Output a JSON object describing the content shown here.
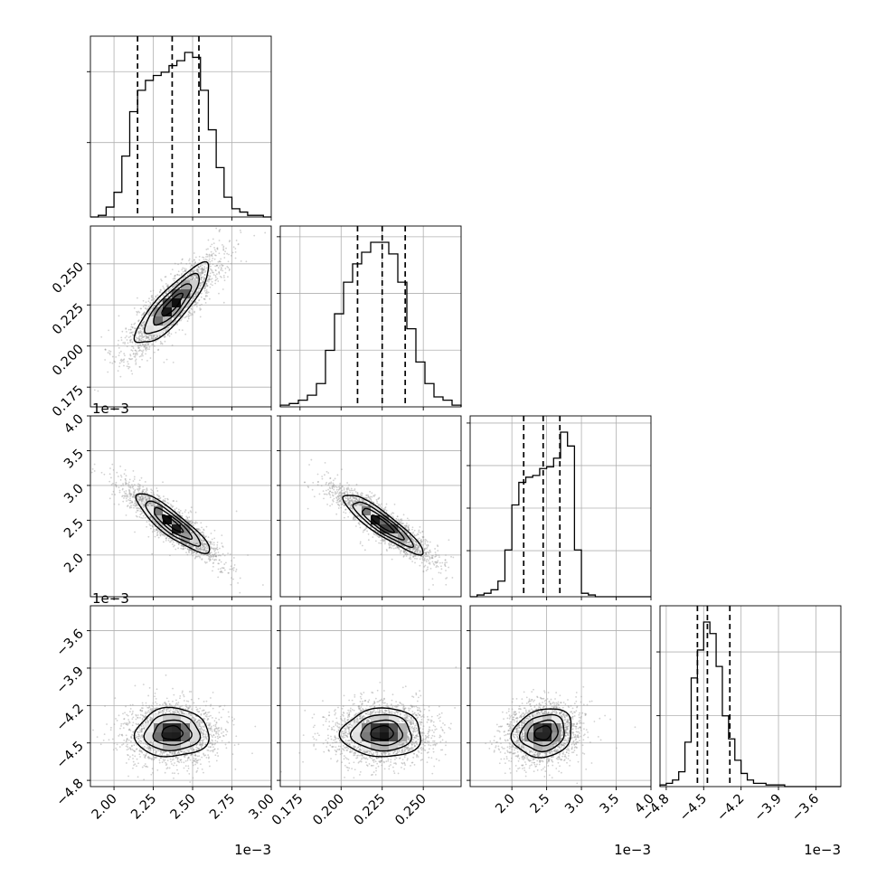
{
  "chart_data": {
    "type": "corner",
    "parameters": [
      {
        "range": [
          1.85,
          3.0
        ],
        "ticks": [
          2.0,
          2.25,
          2.5,
          2.75,
          3.0
        ],
        "tick_labels": [
          "2.00",
          "2.25",
          "2.50",
          "2.75",
          "3.00"
        ],
        "offset_label": "1e−3",
        "quantiles": [
          2.15,
          2.37,
          2.54
        ],
        "hist_edges": [
          1.85,
          1.9,
          1.95,
          2.0,
          2.05,
          2.1,
          2.15,
          2.2,
          2.25,
          2.3,
          2.35,
          2.4,
          2.45,
          2.5,
          2.55,
          2.6,
          2.65,
          2.7,
          2.75,
          2.8,
          2.85,
          2.9,
          2.95,
          3.0
        ],
        "hist_counts": [
          0,
          0.01,
          0.06,
          0.15,
          0.37,
          0.64,
          0.77,
          0.83,
          0.86,
          0.88,
          0.92,
          0.95,
          1.0,
          0.97,
          0.77,
          0.53,
          0.3,
          0.12,
          0.05,
          0.03,
          0.01,
          0.01,
          0
        ],
        "diag_ytick_fracs": [
          0.42,
          0.82
        ]
      },
      {
        "range": [
          0.163,
          0.273
        ],
        "ticks": [
          0.175,
          0.2,
          0.225,
          0.25
        ],
        "tick_labels": [
          "0.175",
          "0.200",
          "0.225",
          "0.250"
        ],
        "offset_label": "",
        "quantiles": [
          0.21,
          0.225,
          0.239
        ],
        "hist_edges": [
          0.163,
          0.1685,
          0.174,
          0.1795,
          0.185,
          0.1905,
          0.196,
          0.2015,
          0.207,
          0.2125,
          0.218,
          0.2235,
          0.229,
          0.2345,
          0.24,
          0.2455,
          0.251,
          0.2565,
          0.262,
          0.2675,
          0.273
        ],
        "hist_counts": [
          0.01,
          0.02,
          0.04,
          0.07,
          0.14,
          0.34,
          0.56,
          0.75,
          0.86,
          0.93,
          0.99,
          0.99,
          0.92,
          0.75,
          0.47,
          0.27,
          0.14,
          0.06,
          0.04,
          0.01
        ],
        "diag_ytick_fracs": [
          0.32,
          0.64,
          0.96
        ]
      },
      {
        "range": [
          1.4,
          4.0
        ],
        "ticks": [
          2.0,
          2.5,
          3.0,
          3.5,
          4.0
        ],
        "tick_labels": [
          "2.0",
          "2.5",
          "3.0",
          "3.5",
          "4.0"
        ],
        "offset_label": "1e−3",
        "quantiles": [
          2.17,
          2.45,
          2.69
        ],
        "hist_edges": [
          1.4,
          1.5,
          1.6,
          1.7,
          1.8,
          1.9,
          2.0,
          2.1,
          2.2,
          2.3,
          2.4,
          2.5,
          2.6,
          2.7,
          2.8,
          2.9,
          3.0,
          3.1,
          3.2,
          3.3,
          3.4,
          3.5,
          3.6,
          3.7,
          3.8,
          3.9,
          4.0
        ],
        "hist_counts": [
          0,
          0.01,
          0.02,
          0.04,
          0.09,
          0.27,
          0.53,
          0.66,
          0.69,
          0.7,
          0.74,
          0.75,
          0.8,
          0.95,
          0.87,
          0.27,
          0.02,
          0.01,
          0,
          0,
          0,
          0,
          0,
          0,
          0,
          0
        ],
        "diag_ytick_fracs": [
          0.26,
          0.5,
          0.74,
          0.98
        ]
      },
      {
        "range": [
          -4.85,
          -3.4
        ],
        "ticks": [
          -4.8,
          -4.5,
          -4.2,
          -3.9,
          -3.6
        ],
        "tick_labels": [
          "−4.8",
          "−4.5",
          "−4.2",
          "−3.9",
          "−3.6"
        ],
        "offset_label": "1e−3",
        "quantiles": [
          -4.55,
          -4.47,
          -4.29
        ],
        "hist_edges": [
          -4.85,
          -4.8,
          -4.75,
          -4.7,
          -4.65,
          -4.6,
          -4.55,
          -4.5,
          -4.45,
          -4.4,
          -4.35,
          -4.3,
          -4.25,
          -4.2,
          -4.15,
          -4.1,
          -4.05,
          -4.0,
          -3.95,
          -3.9,
          -3.85,
          -3.8,
          -3.75,
          -3.7,
          -3.65,
          -3.6,
          -3.55,
          -3.5,
          -3.45,
          -3.4
        ],
        "hist_counts": [
          0.01,
          0.02,
          0.04,
          0.09,
          0.27,
          0.66,
          0.83,
          1.0,
          0.93,
          0.73,
          0.43,
          0.29,
          0.16,
          0.08,
          0.04,
          0.02,
          0.02,
          0.01,
          0.01,
          0.01,
          0,
          0,
          0,
          0,
          0,
          0,
          0,
          0,
          0
        ],
        "diag_ytick_fracs": [
          0.4,
          0.76
        ]
      }
    ],
    "pairs": [
      {
        "row": 1,
        "col": 0,
        "mean": [
          2.37,
          0.225
        ],
        "sd": [
          0.12,
          0.0125
        ],
        "rho": 0.85,
        "n": 2400
      },
      {
        "row": 2,
        "col": 0,
        "mean": [
          2.37,
          2.45
        ],
        "sd": [
          0.12,
          0.22
        ],
        "rho": -0.88,
        "n": 2400
      },
      {
        "row": 2,
        "col": 1,
        "mean": [
          0.225,
          2.45
        ],
        "sd": [
          0.0125,
          0.22
        ],
        "rho": -0.9,
        "n": 2400
      },
      {
        "row": 3,
        "col": 0,
        "mean": [
          2.37,
          -4.42
        ],
        "sd": [
          0.12,
          0.1
        ],
        "rho": 0.02,
        "n": 2400
      },
      {
        "row": 3,
        "col": 1,
        "mean": [
          0.225,
          -4.42
        ],
        "sd": [
          0.0125,
          0.1
        ],
        "rho": 0.0,
        "n": 2400
      },
      {
        "row": 3,
        "col": 2,
        "mean": [
          2.45,
          -4.42
        ],
        "sd": [
          0.22,
          0.1
        ],
        "rho": 0.15,
        "n": 2400
      }
    ],
    "grid": true,
    "colors": {
      "points": "#9a9a9a",
      "density": "#000000",
      "contour": "#000000",
      "grid": "#b0b0b0"
    }
  }
}
